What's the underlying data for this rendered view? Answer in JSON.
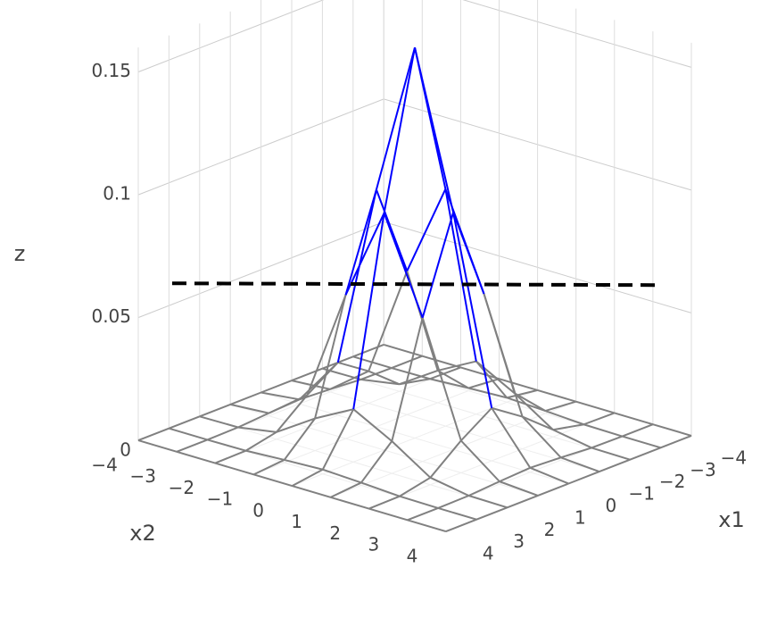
{
  "chart_data": {
    "type": "surface3d",
    "x1": [
      -4,
      -3,
      -2,
      -1,
      0,
      1,
      2,
      3,
      4
    ],
    "x2": [
      -4,
      -3,
      -2,
      -1,
      0,
      1,
      2,
      3,
      4
    ],
    "z": [
      [
        0,
        0,
        0,
        0,
        0,
        0,
        0,
        0,
        0
      ],
      [
        0,
        0,
        0.0002,
        0.0011,
        0.0018,
        0.0011,
        0.0002,
        0,
        0
      ],
      [
        0,
        0.0002,
        0.0029,
        0.0131,
        0.0215,
        0.0131,
        0.0029,
        0.0002,
        0
      ],
      [
        0,
        0.0011,
        0.0131,
        0.0585,
        0.0965,
        0.0585,
        0.0131,
        0.0011,
        0
      ],
      [
        0,
        0.0018,
        0.0215,
        0.0965,
        0.159,
        0.0965,
        0.0215,
        0.0018,
        0
      ],
      [
        0,
        0.0011,
        0.0131,
        0.0585,
        0.0965,
        0.0585,
        0.0131,
        0.0011,
        0
      ],
      [
        0,
        0.0002,
        0.0029,
        0.0131,
        0.0215,
        0.0131,
        0.0029,
        0.0002,
        0
      ],
      [
        0,
        0,
        0.0002,
        0.0011,
        0.0018,
        0.0011,
        0.0002,
        0,
        0
      ],
      [
        0,
        0,
        0,
        0,
        0,
        0,
        0,
        0,
        0
      ]
    ],
    "threshold": 0.063,
    "threshold_color": "#000000",
    "color_above": "#0000ff",
    "color_below": "#808080",
    "x1_title": "x1",
    "x2_title": "x2",
    "z_title": "z",
    "x1lim": [
      -4,
      4
    ],
    "x2lim": [
      -4,
      4
    ],
    "zlim": [
      0,
      0.16
    ],
    "x1ticks": [
      {
        "value": -4,
        "label": "−4"
      },
      {
        "value": -3,
        "label": "−3"
      },
      {
        "value": -2,
        "label": "−2"
      },
      {
        "value": -1,
        "label": "−1"
      },
      0,
      1,
      2,
      3,
      4
    ],
    "x2ticks": [
      {
        "value": -4,
        "label": "−4"
      },
      {
        "value": -3,
        "label": "−3"
      },
      {
        "value": -2,
        "label": "−2"
      },
      {
        "value": -1,
        "label": "−1"
      },
      0,
      1,
      2,
      3,
      4
    ],
    "zticks": [
      0,
      0.05,
      0.1,
      0.15
    ]
  }
}
